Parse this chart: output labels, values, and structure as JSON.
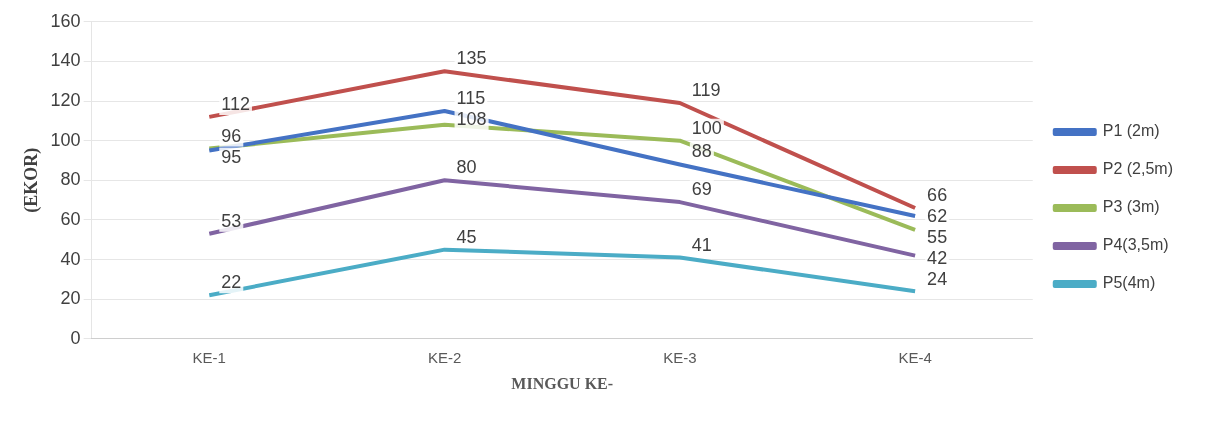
{
  "chart_data": {
    "type": "line",
    "xlabel": "MINGGU KE-",
    "ylabel": "(EKOR)",
    "categories": [
      "KE-1",
      "KE-2",
      "KE-3",
      "KE-4"
    ],
    "series": [
      {
        "name": "P1 (2m)",
        "color": "#4472c4",
        "values": [
          95,
          115,
          88,
          62
        ]
      },
      {
        "name": "P2 (2,5m)",
        "color": "#c0504d",
        "values": [
          112,
          135,
          119,
          66
        ]
      },
      {
        "name": "P3 (3m)",
        "color": "#9bbb59",
        "values": [
          96,
          108,
          100,
          55
        ]
      },
      {
        "name": "P4(3,5m)",
        "color": "#8064a2",
        "values": [
          53,
          80,
          69,
          42
        ]
      },
      {
        "name": "P5(4m)",
        "color": "#4bacc6",
        "values": [
          22,
          45,
          41,
          24
        ]
      }
    ],
    "ylim": [
      0,
      160
    ],
    "yticks": [
      0,
      20,
      40,
      60,
      80,
      100,
      120,
      140,
      160
    ],
    "grid": "y",
    "legend": "right",
    "data_labels": true,
    "marker": "none",
    "line_style": "solid"
  }
}
